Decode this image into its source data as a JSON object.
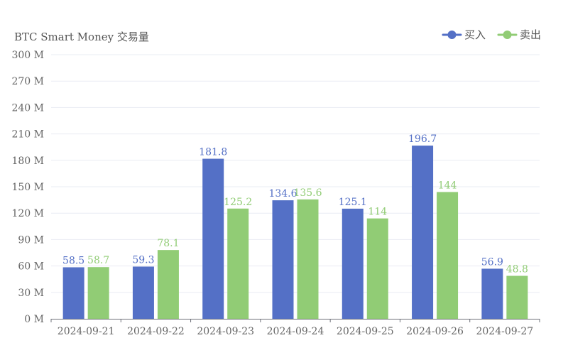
{
  "chart_data": {
    "type": "bar",
    "ylabel": "BTC Smart Money 交易量",
    "categories": [
      "2024-09-21",
      "2024-09-22",
      "2024-09-23",
      "2024-09-24",
      "2024-09-25",
      "2024-09-26",
      "2024-09-27"
    ],
    "series": [
      {
        "name": "买入",
        "values": [
          58.5,
          59.3,
          181.8,
          134.6,
          125.1,
          196.7,
          56.9
        ],
        "color": "#5470c6"
      },
      {
        "name": "卖出",
        "values": [
          58.7,
          78.1,
          125.2,
          135.6,
          114,
          144,
          48.8
        ],
        "color": "#91cc75"
      }
    ],
    "ylim": [
      0,
      300
    ],
    "yticks": [
      0,
      30,
      60,
      90,
      120,
      150,
      180,
      210,
      240,
      270,
      300
    ],
    "ytick_labels": [
      "0 M",
      "30 M",
      "60 M",
      "90 M",
      "120 M",
      "150 M",
      "180 M",
      "210 M",
      "240 M",
      "270 M",
      "300 M"
    ],
    "grid": true,
    "legend_position": "top-right",
    "data_labels": true
  }
}
